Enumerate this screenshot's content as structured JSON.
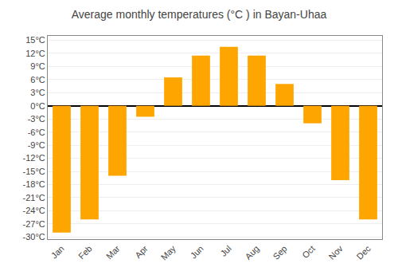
{
  "chart_data": {
    "type": "bar",
    "title": "Average monthly temperatures (°C ) in Bayan-Uhaa",
    "categories": [
      "Jan",
      "Feb",
      "Mar",
      "Apr",
      "May",
      "Jun",
      "Jul",
      "Aug",
      "Sep",
      "Oct",
      "Nov",
      "Dec"
    ],
    "values": [
      -29,
      -26,
      -16,
      -2.5,
      6.5,
      11.5,
      13.5,
      11.5,
      5,
      -4,
      -17,
      -26
    ],
    "color": "#FFA500",
    "ylim": [
      -30.5,
      16
    ],
    "yticks": [
      {
        "value": -30,
        "label": "-30°C"
      },
      {
        "value": -27,
        "label": "-27°C"
      },
      {
        "value": -24,
        "label": "-24°C"
      },
      {
        "value": -21,
        "label": "-21°C"
      },
      {
        "value": -18,
        "label": "-18°C"
      },
      {
        "value": -15,
        "label": "-15°C"
      },
      {
        "value": -12,
        "label": "-12°C"
      },
      {
        "value": -9,
        "label": "-9°C"
      },
      {
        "value": -6,
        "label": "-6°C"
      },
      {
        "value": -3,
        "label": "-3°C"
      },
      {
        "value": 0,
        "label": "0°C"
      },
      {
        "value": 3,
        "label": "3°C"
      },
      {
        "value": 6,
        "label": "6°C"
      },
      {
        "value": 9,
        "label": "9°C"
      },
      {
        "value": 12,
        "label": "12°C"
      },
      {
        "value": 15,
        "label": "15°C"
      }
    ],
    "grid": true
  }
}
